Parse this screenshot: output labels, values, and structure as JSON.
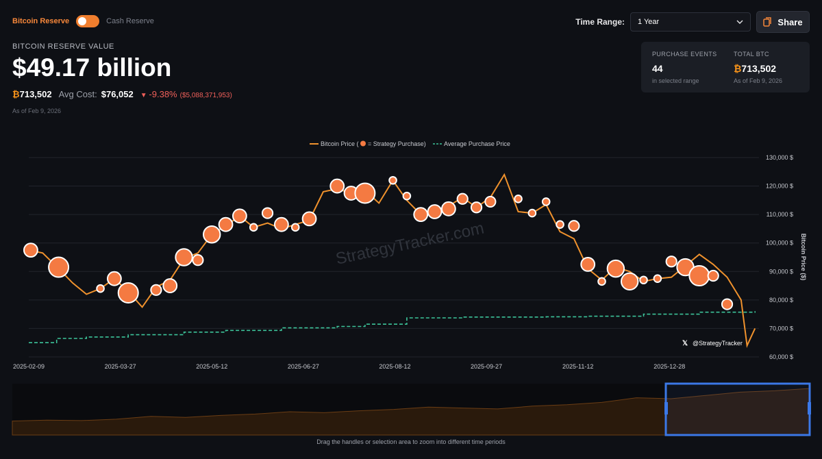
{
  "toggle": {
    "active_label": "Bitcoin Reserve",
    "inactive_label": "Cash Reserve"
  },
  "time_range": {
    "label": "Time Range:",
    "selected": "1 Year"
  },
  "share_label": "Share",
  "reserve": {
    "label": "BITCOIN RESERVE VALUE",
    "value": "$49.17 billion",
    "btc_symbol": "₿",
    "btc_amount": "713,502",
    "avg_cost_label": "Avg Cost:",
    "avg_cost": "$76,052",
    "change_pct": "-9.38%",
    "change_abs": "($5,088,371,953)",
    "as_of": "As of Feb 9, 2026"
  },
  "stats": {
    "purchase_events": {
      "title": "PURCHASE EVENTS",
      "value": "44",
      "sub": "in selected range"
    },
    "total_btc": {
      "title": "TOTAL BTC",
      "symbol": "₿",
      "value": "713,502",
      "sub": "As of Feb 9, 2026"
    }
  },
  "watermark": "StrategyTracker.com",
  "handle": "@StrategyTracker",
  "footer_hint": "Drag the handles or selection area to zoom into different time periods",
  "colors": {
    "accent": "#f7873a",
    "price_line": "#f0922d",
    "avg_line": "#3cc49a",
    "negative": "#f0605a",
    "selection": "#3b78e7"
  },
  "chart_data": {
    "type": "line",
    "legend": [
      "Bitcoin Price (",
      "= Strategy Purchase)",
      "Average Purchase Price"
    ],
    "ylabel": "Bitcoin Price ($)",
    "ylim": [
      60000,
      130000
    ],
    "yticks": [
      "60,000 $",
      "70,000 $",
      "80,000 $",
      "90,000 $",
      "100,000 $",
      "110,000 $",
      "120,000 $",
      "130,000 $"
    ],
    "xticks": [
      "2025-02-09",
      "2025-03-27",
      "2025-05-12",
      "2025-06-27",
      "2025-08-12",
      "2025-09-27",
      "2025-11-12",
      "2025-12-28"
    ],
    "grid": true,
    "price": {
      "name": "Bitcoin Price",
      "x": [
        "2025-02-09",
        "2025-02-16",
        "2025-02-24",
        "2025-03-03",
        "2025-03-10",
        "2025-03-17",
        "2025-03-24",
        "2025-03-31",
        "2025-04-07",
        "2025-04-14",
        "2025-04-21",
        "2025-04-28",
        "2025-05-05",
        "2025-05-12",
        "2025-05-19",
        "2025-05-26",
        "2025-06-02",
        "2025-06-09",
        "2025-06-16",
        "2025-06-23",
        "2025-06-30",
        "2025-07-07",
        "2025-07-14",
        "2025-07-21",
        "2025-07-28",
        "2025-08-04",
        "2025-08-11",
        "2025-08-18",
        "2025-08-25",
        "2025-09-01",
        "2025-09-08",
        "2025-09-15",
        "2025-09-22",
        "2025-09-29",
        "2025-10-06",
        "2025-10-13",
        "2025-10-20",
        "2025-10-27",
        "2025-11-03",
        "2025-11-10",
        "2025-11-17",
        "2025-11-24",
        "2025-12-01",
        "2025-12-08",
        "2025-12-15",
        "2025-12-22",
        "2025-12-29",
        "2026-01-05",
        "2026-01-12",
        "2026-01-19",
        "2026-01-26",
        "2026-02-02",
        "2026-02-05",
        "2026-02-09"
      ],
      "y": [
        97500,
        96500,
        91000,
        86000,
        82000,
        84000,
        87500,
        83000,
        77500,
        84500,
        87000,
        94500,
        96500,
        103000,
        106000,
        109500,
        105500,
        107000,
        105000,
        106500,
        108000,
        118000,
        119000,
        117500,
        118500,
        114000,
        122000,
        115000,
        110000,
        111000,
        113000,
        116000,
        112500,
        116000,
        124000,
        111000,
        110500,
        113500,
        104000,
        101500,
        91000,
        87000,
        91500,
        90000,
        86500,
        87500,
        88000,
        92000,
        96000,
        92500,
        88000,
        80000,
        64000,
        70000
      ]
    },
    "avg_cost": {
      "name": "Average Purchase Price",
      "x": [
        "2025-02-09",
        "2025-02-23",
        "2025-03-10",
        "2025-03-31",
        "2025-04-28",
        "2025-05-19",
        "2025-06-16",
        "2025-07-14",
        "2025-07-28",
        "2025-08-18",
        "2025-09-15",
        "2025-10-27",
        "2025-11-17",
        "2025-12-15",
        "2026-01-12",
        "2026-02-09"
      ],
      "y": [
        65000,
        66500,
        67000,
        67800,
        68700,
        69300,
        70200,
        70700,
        71500,
        73700,
        74000,
        74100,
        74300,
        75000,
        75700,
        76052
      ]
    },
    "purchases": [
      {
        "x": "2025-02-10",
        "y": 97500,
        "size": 3
      },
      {
        "x": "2025-02-24",
        "y": 91500,
        "size": 5
      },
      {
        "x": "2025-03-17",
        "y": 84000,
        "size": 1
      },
      {
        "x": "2025-03-24",
        "y": 87500,
        "size": 3
      },
      {
        "x": "2025-03-31",
        "y": 82500,
        "size": 5
      },
      {
        "x": "2025-04-14",
        "y": 83500,
        "size": 2
      },
      {
        "x": "2025-04-21",
        "y": 85000,
        "size": 3
      },
      {
        "x": "2025-04-28",
        "y": 95000,
        "size": 4
      },
      {
        "x": "2025-05-05",
        "y": 94000,
        "size": 2
      },
      {
        "x": "2025-05-12",
        "y": 103000,
        "size": 4
      },
      {
        "x": "2025-05-19",
        "y": 106500,
        "size": 3
      },
      {
        "x": "2025-05-26",
        "y": 109500,
        "size": 3
      },
      {
        "x": "2025-06-02",
        "y": 105500,
        "size": 1
      },
      {
        "x": "2025-06-09",
        "y": 110500,
        "size": 2
      },
      {
        "x": "2025-06-16",
        "y": 106500,
        "size": 3
      },
      {
        "x": "2025-06-23",
        "y": 105500,
        "size": 1
      },
      {
        "x": "2025-06-30",
        "y": 108500,
        "size": 3
      },
      {
        "x": "2025-07-14",
        "y": 120000,
        "size": 3
      },
      {
        "x": "2025-07-21",
        "y": 117500,
        "size": 3
      },
      {
        "x": "2025-07-28",
        "y": 117500,
        "size": 5
      },
      {
        "x": "2025-08-11",
        "y": 122000,
        "size": 1
      },
      {
        "x": "2025-08-18",
        "y": 116500,
        "size": 1
      },
      {
        "x": "2025-08-25",
        "y": 110000,
        "size": 3
      },
      {
        "x": "2025-09-01",
        "y": 111000,
        "size": 3
      },
      {
        "x": "2025-09-08",
        "y": 112000,
        "size": 3
      },
      {
        "x": "2025-09-15",
        "y": 115500,
        "size": 2
      },
      {
        "x": "2025-09-22",
        "y": 112500,
        "size": 2
      },
      {
        "x": "2025-09-29",
        "y": 114500,
        "size": 2
      },
      {
        "x": "2025-10-13",
        "y": 115500,
        "size": 1
      },
      {
        "x": "2025-10-20",
        "y": 110500,
        "size": 1
      },
      {
        "x": "2025-10-27",
        "y": 114500,
        "size": 1
      },
      {
        "x": "2025-11-03",
        "y": 106500,
        "size": 1
      },
      {
        "x": "2025-11-10",
        "y": 106000,
        "size": 2
      },
      {
        "x": "2025-11-17",
        "y": 92500,
        "size": 3
      },
      {
        "x": "2025-11-24",
        "y": 86500,
        "size": 1
      },
      {
        "x": "2025-12-01",
        "y": 91000,
        "size": 4
      },
      {
        "x": "2025-12-08",
        "y": 86500,
        "size": 4
      },
      {
        "x": "2025-12-15",
        "y": 87000,
        "size": 1
      },
      {
        "x": "2025-12-22",
        "y": 87500,
        "size": 1
      },
      {
        "x": "2025-12-29",
        "y": 93500,
        "size": 2
      },
      {
        "x": "2026-01-05",
        "y": 91500,
        "size": 4
      },
      {
        "x": "2026-01-12",
        "y": 88500,
        "size": 5
      },
      {
        "x": "2026-01-19",
        "y": 88500,
        "size": 2
      },
      {
        "x": "2026-01-26",
        "y": 78500,
        "size": 2
      }
    ]
  }
}
